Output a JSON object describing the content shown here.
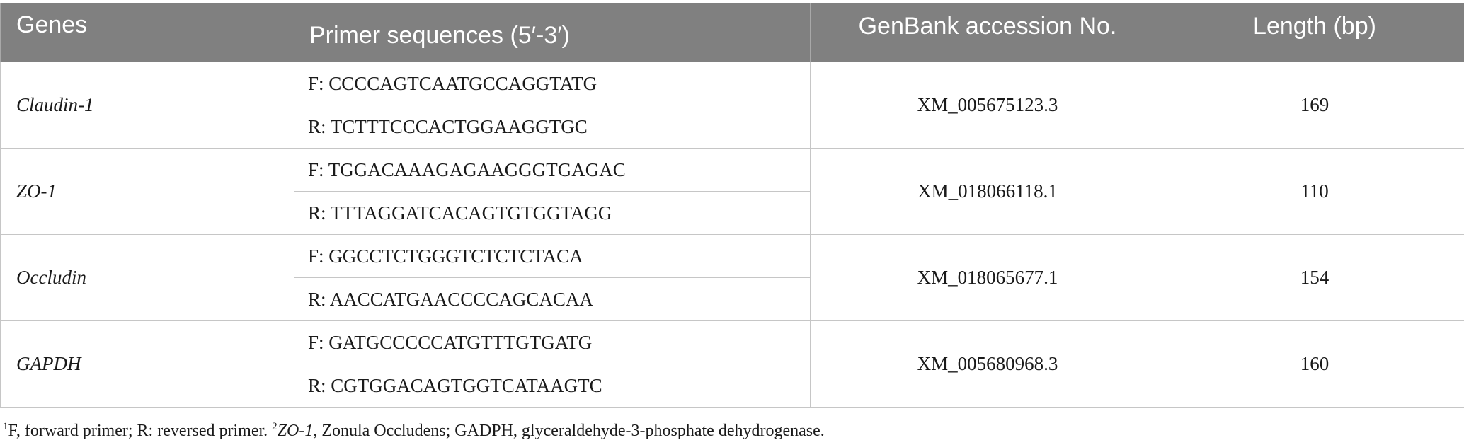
{
  "table": {
    "headers": {
      "genes": "Genes",
      "primer": "Primer sequences (5′-3′)",
      "accession": "GenBank accession No.",
      "length": "Length (bp)"
    },
    "rows": [
      {
        "gene": "Claudin-1",
        "forward": "F: CCCCAGTCAATGCCAGGTATG",
        "reverse": "R: TCTTTCCCACTGGAAGGTGC",
        "accession": "XM_005675123.3",
        "length": "169"
      },
      {
        "gene": "ZO-1",
        "forward": "F: TGGACAAAGAGAAGGGTGAGAC",
        "reverse": "R: TTTAGGATCACAGTGTGGTAGG",
        "accession": "XM_018066118.1",
        "length": "110"
      },
      {
        "gene": "Occludin",
        "forward": "F: GGCCTCTGGGTCTCTCTACA",
        "reverse": "R: AACCATGAACCCCAGCACAA",
        "accession": "XM_018065677.1",
        "length": "154"
      },
      {
        "gene": "GAPDH",
        "forward": "F: GATGCCCCCATGTTTGTGATG",
        "reverse": "R: CGTGGACAGTGGTCATAAGTC",
        "accession": "XM_005680968.3",
        "length": "160"
      }
    ]
  },
  "footnote": {
    "mark1": "1",
    "text1": "F, forward primer; R: reversed primer. ",
    "mark2": "2",
    "gene_italic": "ZO-1,",
    "text2": " Zonula Occludens; GADPH, glyceraldehyde-3-phosphate dehydrogenase."
  },
  "colors": {
    "header_bg": "#808080",
    "header_text": "#ffffff",
    "grid": "#c6c6c6"
  }
}
